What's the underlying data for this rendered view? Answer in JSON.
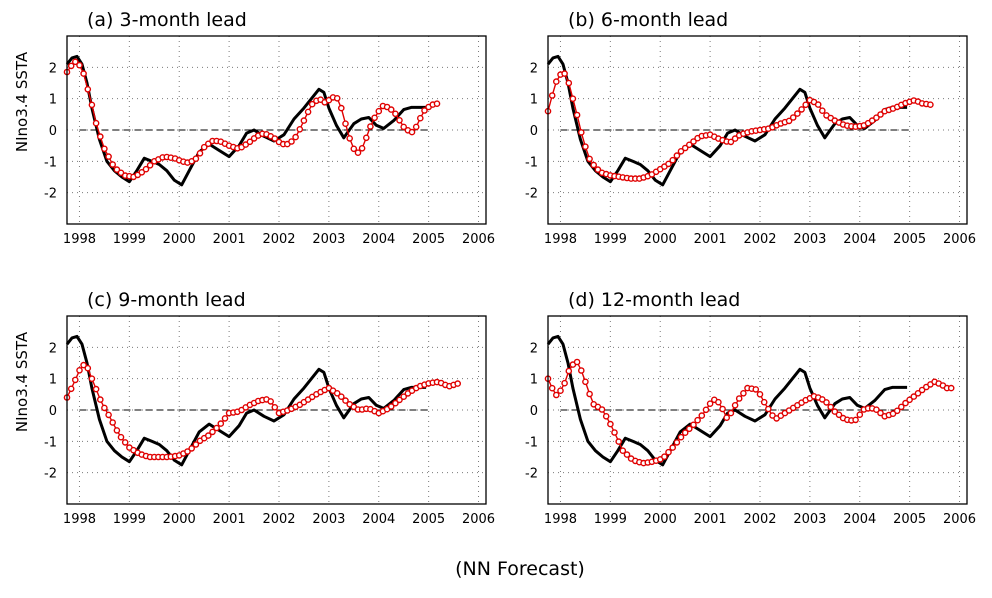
{
  "caption": "(NN Forecast)",
  "chart_data": [
    {
      "type": "line",
      "title": "(a) 3-month lead",
      "ylabel": "NIno3.4 SSTA",
      "xlabel": "",
      "xlim": [
        1997.75,
        2006.15
      ],
      "ylim": [
        -3,
        3
      ],
      "x_ticks": [
        "1998",
        "1999",
        "2000",
        "2001",
        "2002",
        "2003",
        "2004",
        "2005",
        "2006"
      ],
      "y_ticks": [
        "2",
        "1",
        "0",
        "-1",
        "-2"
      ],
      "grid": true,
      "observed": {
        "x": [
          1997.75,
          1997.85,
          1997.95,
          1998.05,
          1998.15,
          1998.25,
          1998.4,
          1998.55,
          1998.7,
          1998.85,
          1999.0,
          1999.15,
          1999.3,
          1999.45,
          1999.6,
          1999.75,
          1999.9,
          2000.05,
          2000.2,
          2000.4,
          2000.6,
          2000.8,
          2001.0,
          2001.2,
          2001.35,
          2001.5,
          2001.7,
          2001.9,
          2002.1,
          2002.3,
          2002.5,
          2002.65,
          2002.8,
          2002.9,
          2003.0,
          2003.15,
          2003.3,
          2003.5,
          2003.65,
          2003.8,
          2003.95,
          2004.1,
          2004.3,
          2004.5,
          2004.65,
          2004.8,
          2004.95
        ],
        "y": [
          2.1,
          2.3,
          2.35,
          2.1,
          1.5,
          0.7,
          -0.3,
          -1.0,
          -1.3,
          -1.5,
          -1.65,
          -1.3,
          -0.9,
          -1.0,
          -1.1,
          -1.3,
          -1.6,
          -1.75,
          -1.3,
          -0.7,
          -0.45,
          -0.65,
          -0.85,
          -0.5,
          -0.1,
          0.0,
          -0.2,
          -0.35,
          -0.15,
          0.35,
          0.7,
          1.0,
          1.3,
          1.2,
          0.7,
          0.15,
          -0.25,
          0.2,
          0.35,
          0.4,
          0.15,
          0.05,
          0.3,
          0.65,
          0.72,
          0.72,
          0.72
        ]
      },
      "forecast": {
        "x": [
          1997.75,
          1997.9,
          1998.05,
          1998.15,
          1998.25,
          1998.35,
          1998.5,
          1998.7,
          1998.9,
          1999.1,
          1999.3,
          1999.5,
          1999.7,
          1999.9,
          2000.05,
          2000.2,
          2000.35,
          2000.5,
          2000.65,
          2000.8,
          2001.0,
          2001.2,
          2001.4,
          2001.55,
          2001.7,
          2001.9,
          2002.05,
          2002.2,
          2002.35,
          2002.5,
          2002.65,
          2002.8,
          2002.95,
          2003.05,
          2003.2,
          2003.3,
          2003.4,
          2003.5,
          2003.6,
          2003.7,
          2003.8,
          2003.95,
          2004.1,
          2004.3,
          2004.5,
          2004.65,
          2004.75,
          2004.9,
          2005.05,
          2005.2
        ],
        "y": [
          1.85,
          2.2,
          2.0,
          1.4,
          0.8,
          0.1,
          -0.6,
          -1.2,
          -1.45,
          -1.5,
          -1.3,
          -1.0,
          -0.85,
          -0.9,
          -1.0,
          -1.05,
          -0.9,
          -0.55,
          -0.35,
          -0.35,
          -0.5,
          -0.6,
          -0.4,
          -0.2,
          -0.1,
          -0.25,
          -0.45,
          -0.45,
          -0.2,
          0.3,
          0.8,
          1.0,
          0.85,
          1.05,
          1.0,
          0.4,
          -0.2,
          -0.6,
          -0.75,
          -0.5,
          0.0,
          0.5,
          0.8,
          0.6,
          0.1,
          -0.1,
          0.1,
          0.6,
          0.8,
          0.85
        ]
      }
    },
    {
      "type": "line",
      "title": "(b) 6-month lead",
      "ylabel": "",
      "xlabel": "",
      "xlim": [
        1997.75,
        2006.15
      ],
      "ylim": [
        -3,
        3
      ],
      "x_ticks": [
        "1998",
        "1999",
        "2000",
        "2001",
        "2002",
        "2003",
        "2004",
        "2005",
        "2006"
      ],
      "y_ticks": [
        "2",
        "1",
        "0",
        "-1",
        "-2"
      ],
      "grid": true,
      "observed": {
        "x": [
          1997.75,
          1997.85,
          1997.95,
          1998.05,
          1998.15,
          1998.25,
          1998.4,
          1998.55,
          1998.7,
          1998.85,
          1999.0,
          1999.15,
          1999.3,
          1999.45,
          1999.6,
          1999.75,
          1999.9,
          2000.05,
          2000.2,
          2000.4,
          2000.6,
          2000.8,
          2001.0,
          2001.2,
          2001.35,
          2001.5,
          2001.7,
          2001.9,
          2002.1,
          2002.3,
          2002.5,
          2002.65,
          2002.8,
          2002.9,
          2003.0,
          2003.15,
          2003.3,
          2003.5,
          2003.65,
          2003.8,
          2003.95,
          2004.1,
          2004.3,
          2004.5,
          2004.65,
          2004.8,
          2004.95
        ],
        "y": [
          2.1,
          2.3,
          2.35,
          2.1,
          1.5,
          0.7,
          -0.3,
          -1.0,
          -1.3,
          -1.5,
          -1.65,
          -1.3,
          -0.9,
          -1.0,
          -1.1,
          -1.3,
          -1.6,
          -1.75,
          -1.3,
          -0.7,
          -0.45,
          -0.65,
          -0.85,
          -0.5,
          -0.1,
          0.0,
          -0.2,
          -0.35,
          -0.15,
          0.35,
          0.7,
          1.0,
          1.3,
          1.2,
          0.7,
          0.15,
          -0.25,
          0.2,
          0.35,
          0.4,
          0.15,
          0.05,
          0.3,
          0.65,
          0.72,
          0.72,
          0.72
        ]
      },
      "forecast": {
        "x": [
          1997.75,
          1997.9,
          1998.05,
          1998.15,
          1998.3,
          1998.45,
          1998.6,
          1998.8,
          1999.0,
          1999.2,
          1999.4,
          1999.6,
          1999.8,
          2000.0,
          2000.2,
          2000.4,
          2000.6,
          2000.8,
          2001.0,
          2001.2,
          2001.4,
          2001.6,
          2001.8,
          2002.0,
          2002.2,
          2002.4,
          2002.6,
          2002.8,
          2003.0,
          2003.15,
          2003.3,
          2003.5,
          2003.7,
          2003.9,
          2004.1,
          2004.3,
          2004.5,
          2004.7,
          2004.9,
          2005.1,
          2005.25,
          2005.45
        ],
        "y": [
          0.6,
          1.5,
          1.9,
          1.6,
          0.7,
          -0.3,
          -1.0,
          -1.35,
          -1.45,
          -1.5,
          -1.55,
          -1.55,
          -1.45,
          -1.25,
          -1.05,
          -0.7,
          -0.45,
          -0.2,
          -0.15,
          -0.3,
          -0.4,
          -0.15,
          -0.05,
          0.0,
          0.05,
          0.2,
          0.3,
          0.6,
          0.95,
          0.85,
          0.5,
          0.3,
          0.15,
          0.1,
          0.15,
          0.35,
          0.6,
          0.7,
          0.85,
          0.95,
          0.85,
          0.8
        ]
      }
    },
    {
      "type": "line",
      "title": "(c) 9-month lead",
      "ylabel": "NIno3.4 SSTA",
      "xlabel": "",
      "xlim": [
        1997.75,
        2006.15
      ],
      "ylim": [
        -3,
        3
      ],
      "x_ticks": [
        "1998",
        "1999",
        "2000",
        "2001",
        "2002",
        "2003",
        "2004",
        "2005",
        "2006"
      ],
      "y_ticks": [
        "2",
        "1",
        "0",
        "-1",
        "-2"
      ],
      "grid": true,
      "observed": {
        "x": [
          1997.75,
          1997.85,
          1997.95,
          1998.05,
          1998.15,
          1998.25,
          1998.4,
          1998.55,
          1998.7,
          1998.85,
          1999.0,
          1999.15,
          1999.3,
          1999.45,
          1999.6,
          1999.75,
          1999.9,
          2000.05,
          2000.2,
          2000.4,
          2000.6,
          2000.8,
          2001.0,
          2001.2,
          2001.35,
          2001.5,
          2001.7,
          2001.9,
          2002.1,
          2002.3,
          2002.5,
          2002.65,
          2002.8,
          2002.9,
          2003.0,
          2003.15,
          2003.3,
          2003.5,
          2003.65,
          2003.8,
          2003.95,
          2004.1,
          2004.3,
          2004.5,
          2004.65,
          2004.8,
          2004.95
        ],
        "y": [
          2.1,
          2.3,
          2.35,
          2.1,
          1.5,
          0.7,
          -0.3,
          -1.0,
          -1.3,
          -1.5,
          -1.65,
          -1.3,
          -0.9,
          -1.0,
          -1.1,
          -1.3,
          -1.6,
          -1.75,
          -1.3,
          -0.7,
          -0.45,
          -0.65,
          -0.85,
          -0.5,
          -0.1,
          0.0,
          -0.2,
          -0.35,
          -0.15,
          0.35,
          0.7,
          1.0,
          1.3,
          1.2,
          0.7,
          0.15,
          -0.25,
          0.2,
          0.35,
          0.4,
          0.15,
          0.05,
          0.3,
          0.65,
          0.72,
          0.72,
          0.72
        ]
      },
      "forecast": {
        "x": [
          1997.75,
          1997.9,
          1998.05,
          1998.15,
          1998.3,
          1998.45,
          1998.6,
          1998.8,
          1999.0,
          1999.2,
          1999.4,
          1999.6,
          1999.8,
          2000.0,
          2000.2,
          2000.4,
          2000.6,
          2000.8,
          2001.0,
          2001.2,
          2001.4,
          2001.6,
          2001.8,
          2002.0,
          2002.2,
          2002.4,
          2002.6,
          2002.8,
          2003.0,
          2003.2,
          2003.4,
          2003.6,
          2003.8,
          2004.0,
          2004.2,
          2004.4,
          2004.6,
          2004.8,
          2005.0,
          2005.2,
          2005.4,
          2005.6
        ],
        "y": [
          0.4,
          0.9,
          1.45,
          1.4,
          0.8,
          0.2,
          -0.2,
          -0.8,
          -1.2,
          -1.4,
          -1.5,
          -1.5,
          -1.5,
          -1.45,
          -1.3,
          -1.0,
          -0.8,
          -0.5,
          -0.1,
          -0.05,
          0.15,
          0.3,
          0.35,
          -0.1,
          0.0,
          0.15,
          0.35,
          0.55,
          0.7,
          0.5,
          0.2,
          0.0,
          0.05,
          -0.1,
          0.05,
          0.3,
          0.55,
          0.75,
          0.85,
          0.9,
          0.75,
          0.85
        ]
      }
    },
    {
      "type": "line",
      "title": "(d) 12-month lead",
      "ylabel": "",
      "xlabel": "",
      "xlim": [
        1997.75,
        2006.15
      ],
      "ylim": [
        -3,
        3
      ],
      "x_ticks": [
        "1998",
        "1999",
        "2000",
        "2001",
        "2002",
        "2003",
        "2004",
        "2005",
        "2006"
      ],
      "y_ticks": [
        "2",
        "1",
        "0",
        "-1",
        "-2"
      ],
      "grid": true,
      "observed": {
        "x": [
          1997.75,
          1997.85,
          1997.95,
          1998.05,
          1998.15,
          1998.25,
          1998.4,
          1998.55,
          1998.7,
          1998.85,
          1999.0,
          1999.15,
          1999.3,
          1999.45,
          1999.6,
          1999.75,
          1999.9,
          2000.05,
          2000.2,
          2000.4,
          2000.6,
          2000.8,
          2001.0,
          2001.2,
          2001.35,
          2001.5,
          2001.7,
          2001.9,
          2002.1,
          2002.3,
          2002.5,
          2002.65,
          2002.8,
          2002.9,
          2003.0,
          2003.15,
          2003.3,
          2003.5,
          2003.65,
          2003.8,
          2003.95,
          2004.1,
          2004.3,
          2004.5,
          2004.65,
          2004.8,
          2004.95
        ],
        "y": [
          2.1,
          2.3,
          2.35,
          2.1,
          1.5,
          0.7,
          -0.3,
          -1.0,
          -1.3,
          -1.5,
          -1.65,
          -1.3,
          -0.9,
          -1.0,
          -1.1,
          -1.3,
          -1.6,
          -1.75,
          -1.3,
          -0.7,
          -0.45,
          -0.65,
          -0.85,
          -0.5,
          -0.1,
          0.0,
          -0.2,
          -0.35,
          -0.15,
          0.35,
          0.7,
          1.0,
          1.3,
          1.2,
          0.7,
          0.15,
          -0.25,
          0.2,
          0.35,
          0.4,
          0.15,
          0.05,
          0.3,
          0.65,
          0.72,
          0.72,
          0.72
        ]
      },
      "forecast": {
        "x": [
          1997.75,
          1997.9,
          1998.05,
          1998.2,
          1998.35,
          1998.5,
          1998.65,
          1998.85,
          1999.05,
          1999.25,
          1999.45,
          1999.65,
          1999.85,
          2000.05,
          2000.25,
          2000.45,
          2000.65,
          2000.85,
          2001.0,
          2001.1,
          2001.2,
          2001.35,
          2001.55,
          2001.75,
          2001.95,
          2002.1,
          2002.3,
          2002.5,
          2002.7,
          2002.9,
          2003.1,
          2003.3,
          2003.5,
          2003.7,
          2003.9,
          2004.1,
          2004.3,
          2004.5,
          2004.7,
          2004.9,
          2005.1,
          2005.3,
          2005.5,
          2005.65,
          2005.8,
          2005.9
        ],
        "y": [
          1.0,
          0.45,
          0.7,
          1.4,
          1.55,
          0.9,
          0.2,
          0.0,
          -0.6,
          -1.3,
          -1.6,
          -1.7,
          -1.65,
          -1.55,
          -1.2,
          -0.8,
          -0.5,
          -0.15,
          0.2,
          0.35,
          0.2,
          -0.3,
          0.3,
          0.7,
          0.65,
          0.2,
          -0.3,
          -0.1,
          0.1,
          0.3,
          0.45,
          0.3,
          -0.05,
          -0.3,
          -0.35,
          0.05,
          0.05,
          -0.2,
          -0.1,
          0.2,
          0.45,
          0.7,
          0.9,
          0.8,
          0.65,
          0.8
        ]
      }
    }
  ]
}
